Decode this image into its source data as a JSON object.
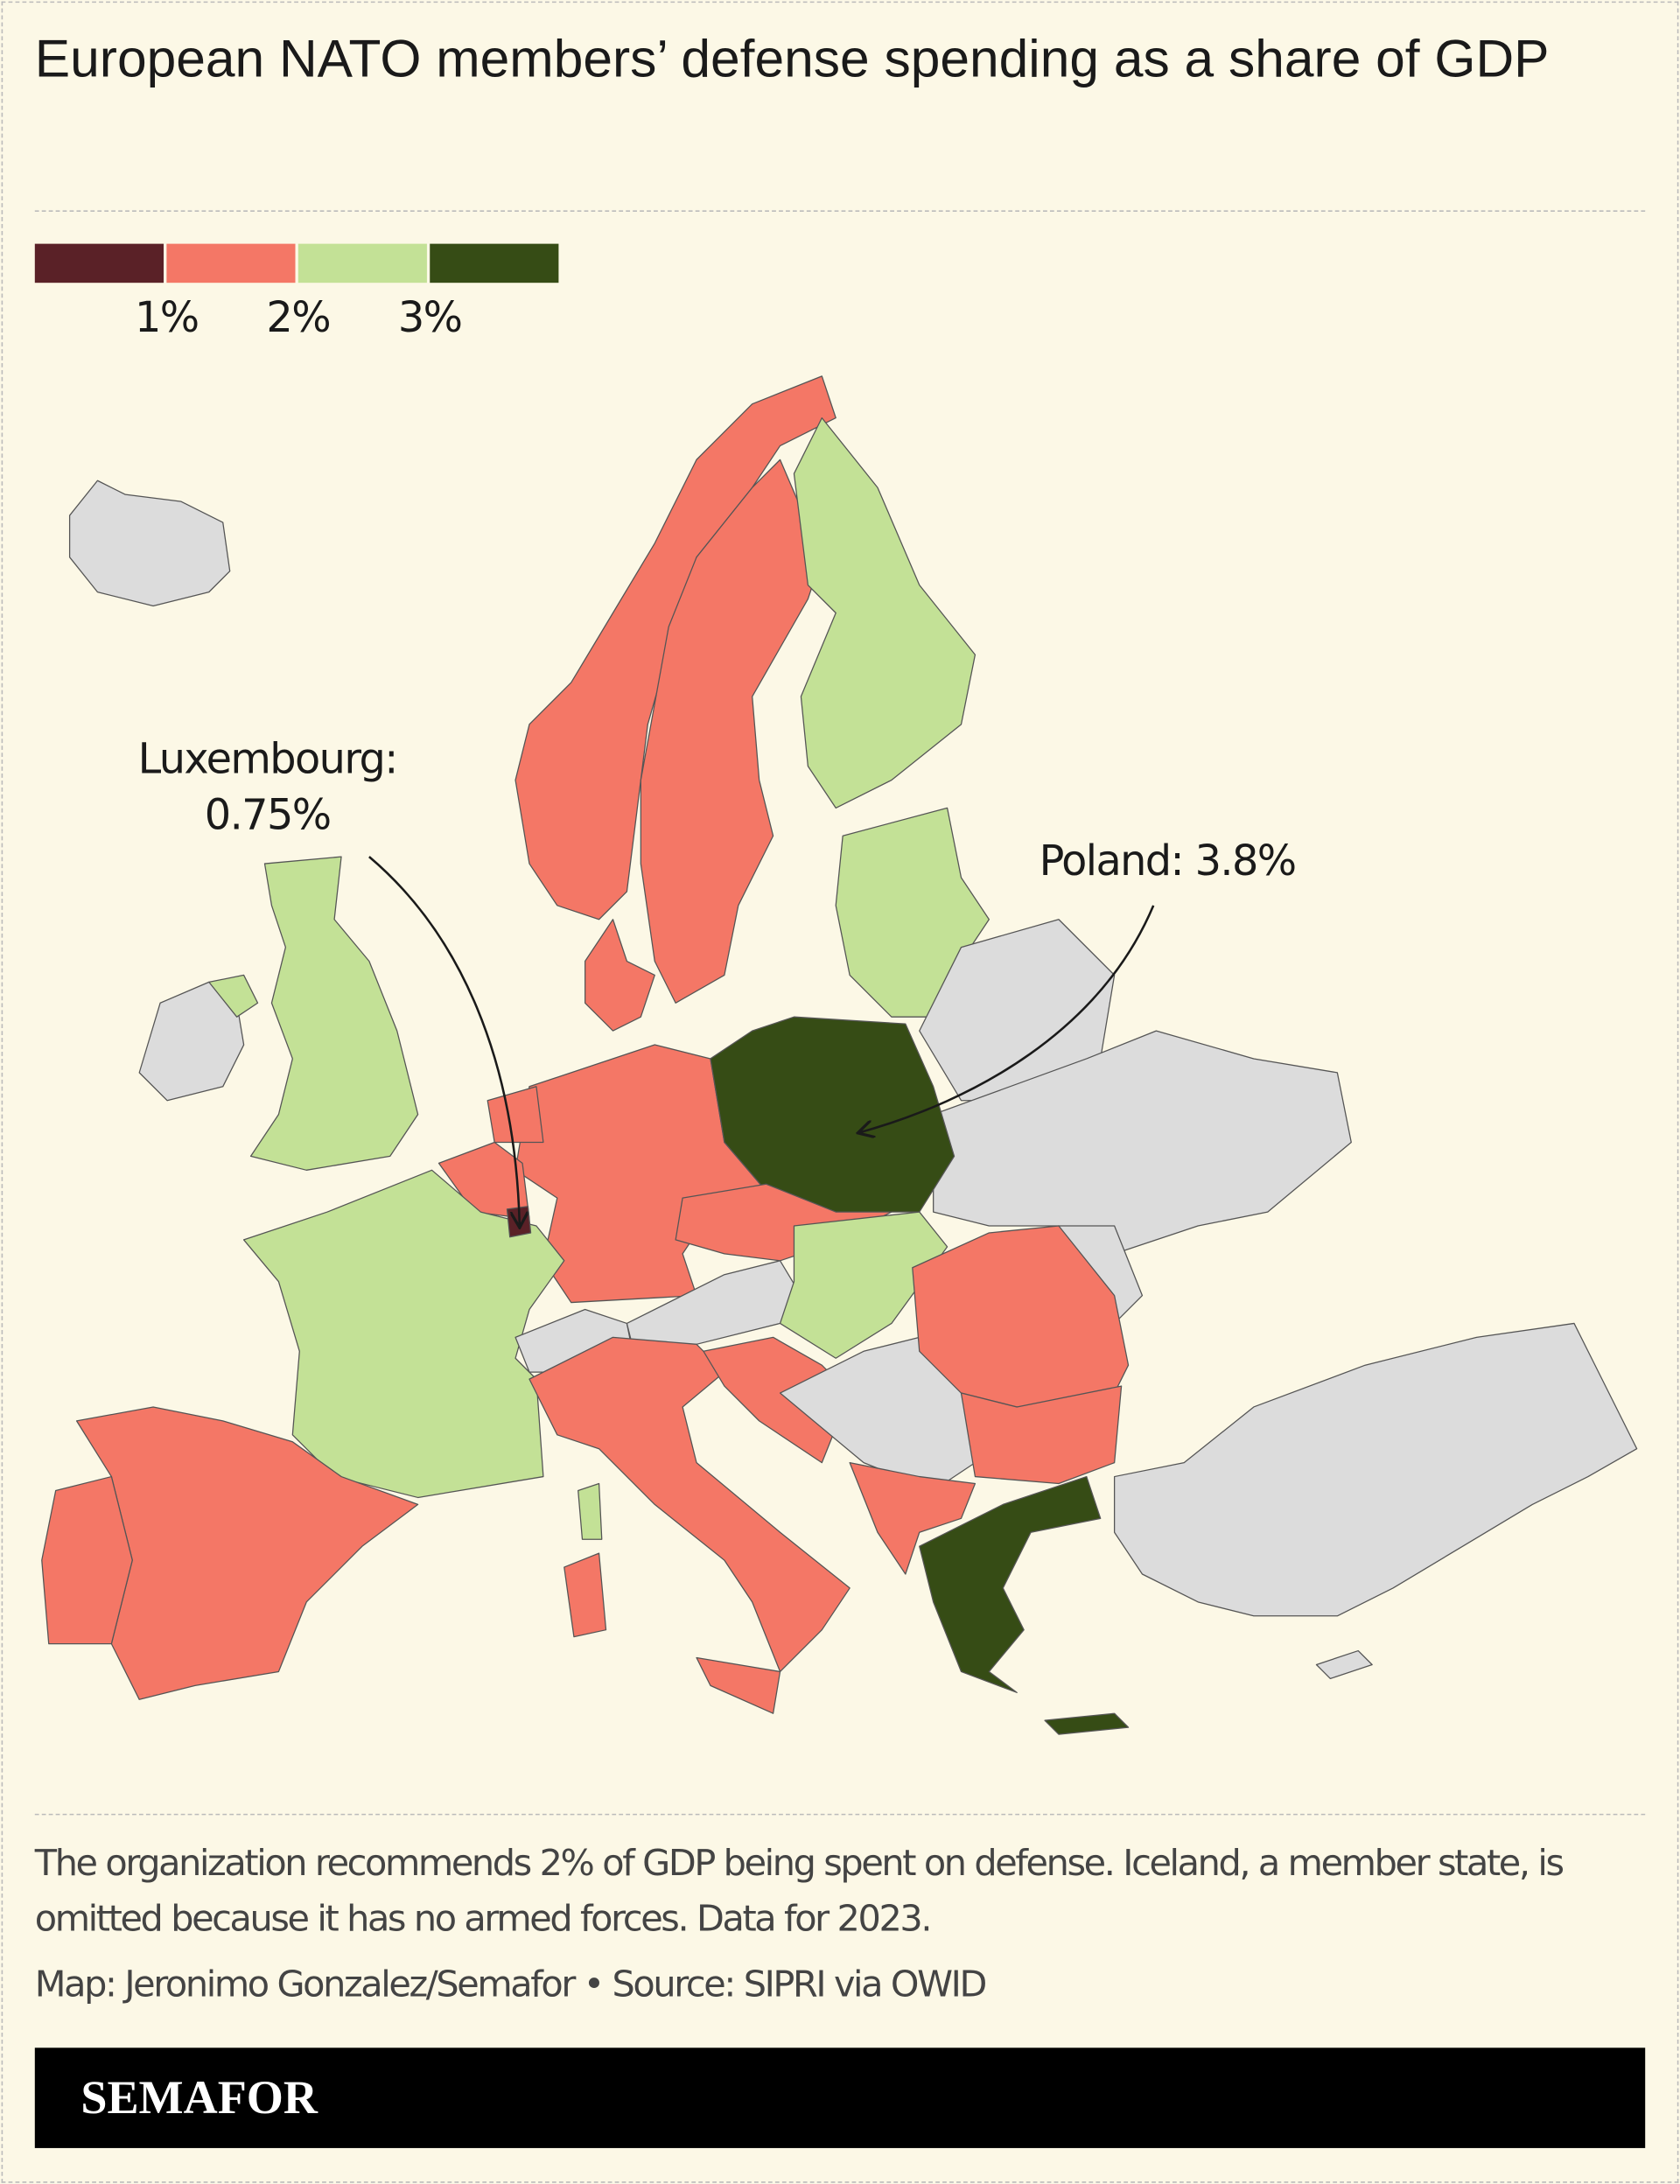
{
  "chart_data": {
    "type": "choropleth",
    "title": "European NATO members’ defense spending as a share of GDP",
    "legend": {
      "colors": [
        "#5a2127",
        "#f47766",
        "#c3e196",
        "#364c15"
      ],
      "lim": [
        0,
        4
      ],
      "ticks": [
        {
          "value": 1,
          "label": "1%"
        },
        {
          "value": 2,
          "label": "2%"
        },
        {
          "value": 3,
          "label": "3%"
        }
      ]
    },
    "annotations": [
      {
        "text": "Luxembourg:",
        "value": 0.75,
        "value_label": "0.75%"
      },
      {
        "text": "Poland:",
        "value": 3.8,
        "value_label": "3.8%"
      }
    ],
    "note": "The organization recommends 2% of GDP being spent on defense. Iceland, a member state, is omitted because it has no armed forces. Data for 2023.",
    "credit": "Map: Jeronimo Gonzalez/Semafor • Source: SIPRI via OWID",
    "brand": "SEMAFOR"
  }
}
